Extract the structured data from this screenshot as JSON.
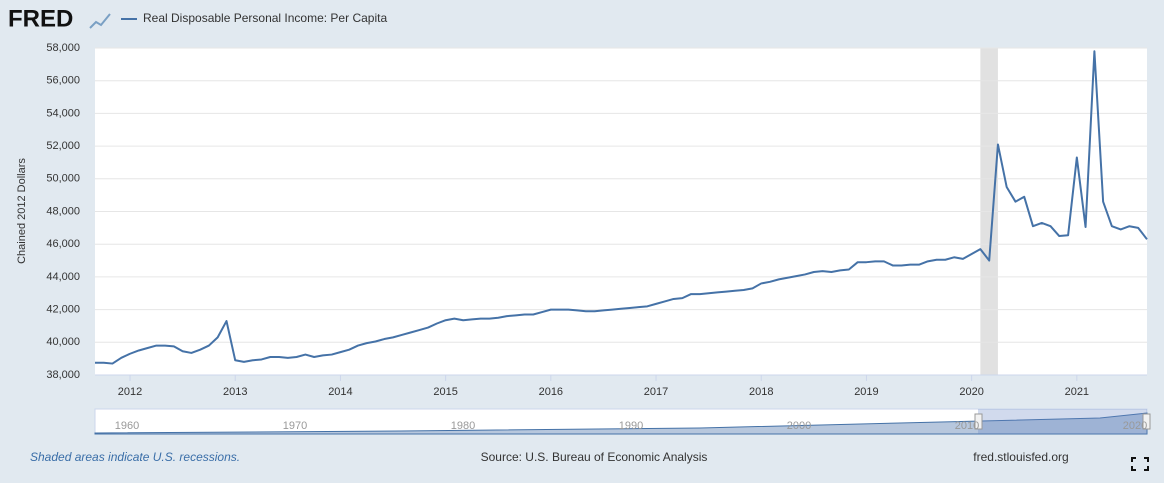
{
  "chart_data": {
    "type": "line",
    "logo": "FRED",
    "ylabel": "Chained 2012 Dollars",
    "note": "Shaded areas indicate U.S. recessions.",
    "source": "Source: U.S. Bureau of Economic Analysis",
    "site": "fred.stlouisfed.org",
    "xlim": [
      2011.667,
      2021.667
    ],
    "ylim": [
      38000,
      58000
    ],
    "xticks": [
      2012,
      2013,
      2014,
      2015,
      2016,
      2017,
      2018,
      2019,
      2020,
      2021
    ],
    "yticks": [
      {
        "value": 38000,
        "label": "38,000"
      },
      {
        "value": 40000,
        "label": "40,000"
      },
      {
        "value": 42000,
        "label": "42,000"
      },
      {
        "value": 44000,
        "label": "44,000"
      },
      {
        "value": 46000,
        "label": "46,000"
      },
      {
        "value": 48000,
        "label": "48,000"
      },
      {
        "value": 50000,
        "label": "50,000"
      },
      {
        "value": 52000,
        "label": "52,000"
      },
      {
        "value": 54000,
        "label": "54,000"
      },
      {
        "value": 56000,
        "label": "56,000"
      },
      {
        "value": 58000,
        "label": "58,000"
      }
    ],
    "grid": true,
    "recessions": [
      {
        "start": 2020.083,
        "end": 2020.25
      }
    ],
    "navigator_labels": [
      "1960",
      "1970",
      "1980",
      "1990",
      "2000",
      "2010",
      "2020"
    ],
    "x": [
      2011.667,
      2011.75,
      2011.833,
      2011.917,
      2012,
      2012.083,
      2012.167,
      2012.25,
      2012.333,
      2012.417,
      2012.5,
      2012.583,
      2012.667,
      2012.75,
      2012.833,
      2012.917,
      2013,
      2013.083,
      2013.167,
      2013.25,
      2013.333,
      2013.417,
      2013.5,
      2013.583,
      2013.667,
      2013.75,
      2013.833,
      2013.917,
      2014,
      2014.083,
      2014.167,
      2014.25,
      2014.333,
      2014.417,
      2014.5,
      2014.583,
      2014.667,
      2014.75,
      2014.833,
      2014.917,
      2015,
      2015.083,
      2015.167,
      2015.25,
      2015.333,
      2015.417,
      2015.5,
      2015.583,
      2015.667,
      2015.75,
      2015.833,
      2015.917,
      2016,
      2016.083,
      2016.167,
      2016.25,
      2016.333,
      2016.417,
      2016.5,
      2016.583,
      2016.667,
      2016.75,
      2016.833,
      2016.917,
      2017,
      2017.083,
      2017.167,
      2017.25,
      2017.333,
      2017.417,
      2017.5,
      2017.583,
      2017.667,
      2017.75,
      2017.833,
      2017.917,
      2018,
      2018.083,
      2018.167,
      2018.25,
      2018.333,
      2018.417,
      2018.5,
      2018.583,
      2018.667,
      2018.75,
      2018.833,
      2018.917,
      2019,
      2019.083,
      2019.167,
      2019.25,
      2019.333,
      2019.417,
      2019.5,
      2019.583,
      2019.667,
      2019.75,
      2019.833,
      2019.917,
      2020,
      2020.083,
      2020.167,
      2020.25,
      2020.333,
      2020.417,
      2020.5,
      2020.583,
      2020.667,
      2020.75,
      2020.833,
      2020.917,
      2021,
      2021.083,
      2021.167,
      2021.25,
      2021.333,
      2021.417,
      2021.5,
      2021.583,
      2021.667
    ],
    "series": [
      {
        "name": "Real Disposable Personal Income: Per Capita",
        "color": "#4572a7",
        "values": [
          38750,
          38750,
          38700,
          39050,
          39300,
          39500,
          39650,
          39800,
          39800,
          39750,
          39450,
          39350,
          39550,
          39800,
          40300,
          41300,
          38900,
          38800,
          38900,
          38950,
          39100,
          39100,
          39050,
          39100,
          39250,
          39100,
          39200,
          39250,
          39400,
          39550,
          39800,
          39950,
          40050,
          40200,
          40300,
          40450,
          40600,
          40750,
          40900,
          41150,
          41350,
          41450,
          41350,
          41400,
          41450,
          41450,
          41500,
          41600,
          41650,
          41700,
          41700,
          41850,
          42000,
          42000,
          42000,
          41950,
          41900,
          41900,
          41950,
          42000,
          42050,
          42100,
          42150,
          42200,
          42350,
          42500,
          42650,
          42700,
          42950,
          42950,
          43000,
          43050,
          43100,
          43150,
          43200,
          43300,
          43600,
          43700,
          43850,
          43950,
          44050,
          44150,
          44300,
          44350,
          44300,
          44400,
          44450,
          44900,
          44900,
          44950,
          44950,
          44700,
          44700,
          44750,
          44750,
          44950,
          45050,
          45050,
          45200,
          45100,
          45400,
          45700,
          45000,
          52100,
          49500,
          48600,
          48900,
          47100,
          47300,
          47100,
          46500,
          46550,
          51300,
          47050,
          57800,
          48600,
          47100,
          46900,
          47100,
          47000,
          46300
        ]
      }
    ]
  }
}
